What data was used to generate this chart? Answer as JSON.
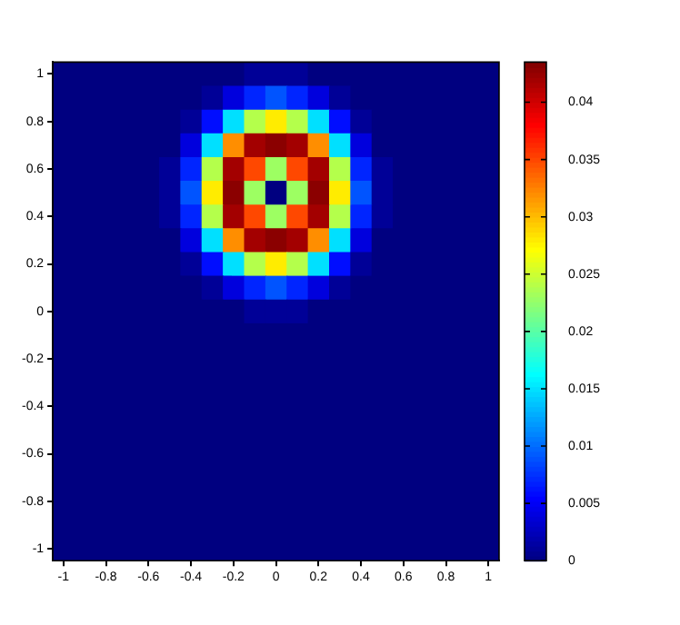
{
  "chart_data": {
    "type": "heatmap",
    "categories": [
      "-1",
      null,
      "-0.8",
      null,
      "-0.6",
      null,
      "-0.4",
      null,
      "-0.2",
      null,
      "0",
      null,
      "0.2",
      null,
      "0.4",
      null,
      "0.6",
      null,
      "0.8",
      null,
      "1"
    ],
    "y_categories": [
      "1",
      null,
      "0.8",
      null,
      "0.6",
      null,
      "0.4",
      null,
      "0.2",
      null,
      "0",
      null,
      "-0.2",
      null,
      "-0.4",
      null,
      "-0.6",
      null,
      "-0.8",
      null,
      "-1"
    ],
    "clim": [
      0,
      0.0435
    ],
    "cticks": [
      0,
      0.005,
      0.01,
      0.015,
      0.02,
      0.025,
      0.03,
      0.035,
      0.04
    ],
    "cells": [
      [
        0,
        0,
        0,
        0,
        0,
        0,
        0,
        0,
        0,
        0.001,
        0.001,
        0.001,
        0,
        0,
        0,
        0,
        0,
        0,
        0,
        0,
        0
      ],
      [
        0,
        0,
        0,
        0,
        0,
        0,
        0,
        0.001,
        0.004,
        0.007,
        0.009,
        0.007,
        0.004,
        0.001,
        0,
        0,
        0,
        0,
        0,
        0,
        0
      ],
      [
        0,
        0,
        0,
        0,
        0,
        0,
        0.001,
        0.006,
        0.015,
        0.024,
        0.028,
        0.024,
        0.015,
        0.006,
        0.001,
        0,
        0,
        0,
        0,
        0,
        0
      ],
      [
        0,
        0,
        0,
        0,
        0,
        0,
        0.004,
        0.015,
        0.032,
        0.042,
        0.043,
        0.042,
        0.032,
        0.015,
        0.004,
        0,
        0,
        0,
        0,
        0,
        0
      ],
      [
        0,
        0,
        0,
        0,
        0,
        0.001,
        0.007,
        0.024,
        0.042,
        0.035,
        0.023,
        0.035,
        0.042,
        0.024,
        0.007,
        0.001,
        0,
        0,
        0,
        0,
        0
      ],
      [
        0,
        0,
        0,
        0,
        0,
        0.001,
        0.009,
        0.028,
        0.043,
        0.023,
        0,
        0.023,
        0.043,
        0.028,
        0.009,
        0.001,
        0,
        0,
        0,
        0,
        0
      ],
      [
        0,
        0,
        0,
        0,
        0,
        0.001,
        0.007,
        0.024,
        0.042,
        0.035,
        0.023,
        0.035,
        0.042,
        0.024,
        0.007,
        0.001,
        0,
        0,
        0,
        0,
        0
      ],
      [
        0,
        0,
        0,
        0,
        0,
        0,
        0.004,
        0.015,
        0.032,
        0.042,
        0.043,
        0.042,
        0.032,
        0.015,
        0.004,
        0,
        0,
        0,
        0,
        0,
        0
      ],
      [
        0,
        0,
        0,
        0,
        0,
        0,
        0.001,
        0.006,
        0.015,
        0.024,
        0.028,
        0.024,
        0.015,
        0.006,
        0.001,
        0,
        0,
        0,
        0,
        0,
        0
      ],
      [
        0,
        0,
        0,
        0,
        0,
        0,
        0,
        0.001,
        0.004,
        0.007,
        0.009,
        0.007,
        0.004,
        0.001,
        0,
        0,
        0,
        0,
        0,
        0,
        0
      ],
      [
        0,
        0,
        0,
        0,
        0,
        0,
        0,
        0,
        0,
        0.001,
        0.001,
        0.001,
        0,
        0,
        0,
        0,
        0,
        0,
        0,
        0,
        0
      ],
      [
        0,
        0,
        0,
        0,
        0,
        0,
        0,
        0,
        0,
        0,
        0,
        0,
        0,
        0,
        0,
        0,
        0,
        0,
        0,
        0,
        0
      ],
      [
        0,
        0,
        0,
        0,
        0,
        0,
        0,
        0,
        0,
        0,
        0,
        0,
        0,
        0,
        0,
        0,
        0,
        0,
        0,
        0,
        0
      ],
      [
        0,
        0,
        0,
        0,
        0,
        0,
        0,
        0,
        0,
        0,
        0,
        0,
        0,
        0,
        0,
        0,
        0,
        0,
        0,
        0,
        0
      ],
      [
        0,
        0,
        0,
        0,
        0,
        0,
        0,
        0,
        0,
        0,
        0,
        0,
        0,
        0,
        0,
        0,
        0,
        0,
        0,
        0,
        0
      ],
      [
        0,
        0,
        0,
        0,
        0,
        0,
        0,
        0,
        0,
        0,
        0,
        0,
        0,
        0,
        0,
        0,
        0,
        0,
        0,
        0,
        0
      ],
      [
        0,
        0,
        0,
        0,
        0,
        0,
        0,
        0,
        0,
        0,
        0,
        0,
        0,
        0,
        0,
        0,
        0,
        0,
        0,
        0,
        0
      ],
      [
        0,
        0,
        0,
        0,
        0,
        0,
        0,
        0,
        0,
        0,
        0,
        0,
        0,
        0,
        0,
        0,
        0,
        0,
        0,
        0,
        0
      ],
      [
        0,
        0,
        0,
        0,
        0,
        0,
        0,
        0,
        0,
        0,
        0,
        0,
        0,
        0,
        0,
        0,
        0,
        0,
        0,
        0,
        0
      ],
      [
        0,
        0,
        0,
        0,
        0,
        0,
        0,
        0,
        0,
        0,
        0,
        0,
        0,
        0,
        0,
        0,
        0,
        0,
        0,
        0,
        0
      ],
      [
        0,
        0,
        0,
        0,
        0,
        0,
        0,
        0,
        0,
        0,
        0,
        0,
        0,
        0,
        0,
        0,
        0,
        0,
        0,
        0,
        0
      ]
    ]
  }
}
